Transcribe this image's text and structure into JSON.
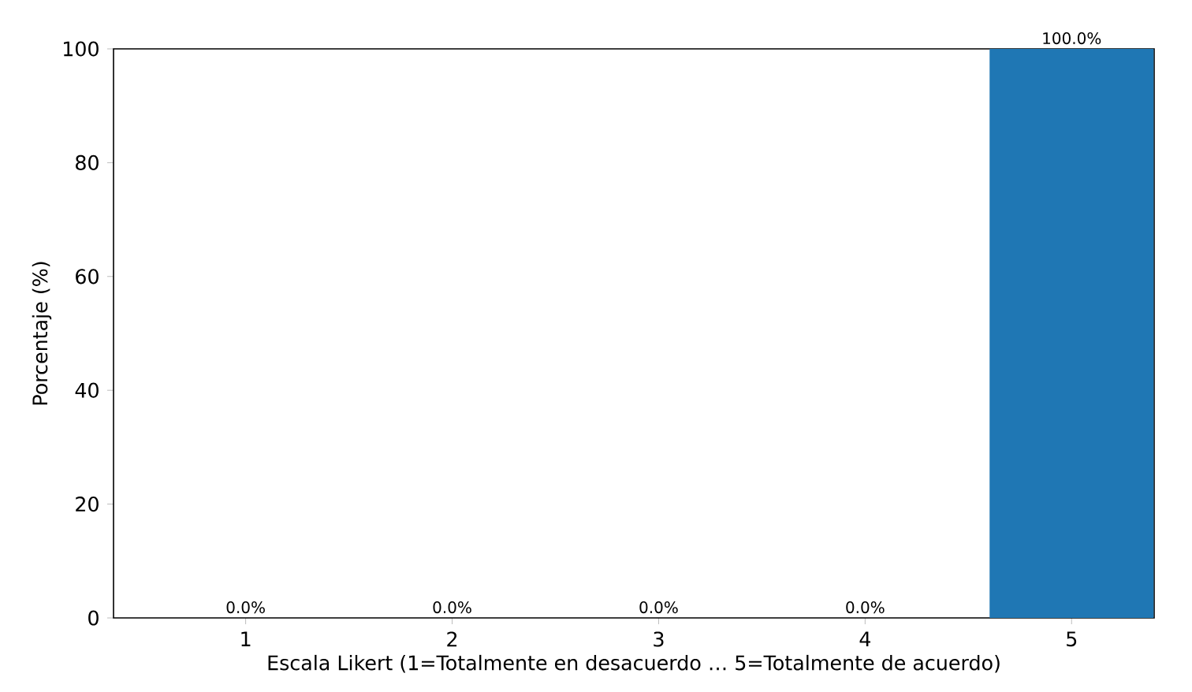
{
  "chart_data": {
    "type": "bar",
    "xlabel": "Escala Likert (1=Totalmente en desacuerdo … 5=Totalmente de acuerdo)",
    "ylabel": "Porcentaje (%)",
    "categories": [
      "1",
      "2",
      "3",
      "4",
      "5"
    ],
    "values": [
      0,
      0,
      0,
      0,
      100
    ],
    "value_labels": [
      "0.0%",
      "0.0%",
      "0.0%",
      "0.0%",
      "100.0%"
    ],
    "color": "#1f77b4",
    "ylim": [
      0,
      100
    ],
    "yticks": [
      0,
      20,
      40,
      60,
      80,
      100
    ]
  }
}
